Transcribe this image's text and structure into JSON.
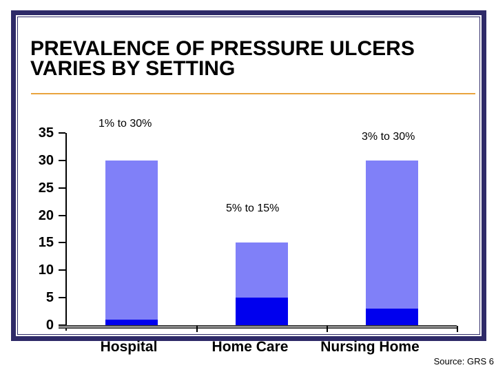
{
  "slide": {
    "title_line1": "PREVALENCE OF PRESSURE ULCERS",
    "title_line2": "VARIES BY SETTING",
    "source": "Source: GRS 6"
  },
  "colors": {
    "frame": "#2E2A68",
    "rule": "#E9A43D",
    "bar_low": "#0000EE",
    "bar_high": "#8080F8",
    "axis": "#000000",
    "baseline_gray": "#8a8a8a"
  },
  "chart_data": {
    "type": "bar",
    "subtype": "stacked-range",
    "title": "PREVALENCE OF PRESSURE ULCERS VARIES BY SETTING",
    "categories": [
      "Hospital",
      "Home Care",
      "Nursing Home"
    ],
    "series": [
      {
        "name": "range-low",
        "values": [
          1,
          5,
          3
        ],
        "color_key": "bar_low"
      },
      {
        "name": "range-high",
        "values": [
          30,
          15,
          30
        ],
        "color_key": "bar_high"
      }
    ],
    "annotations": [
      "1% to 30%",
      "5% to 15%",
      "3% to 30%"
    ],
    "xlabel": "",
    "ylabel": "",
    "ylim": [
      0,
      35
    ],
    "yticks": [
      0,
      5,
      10,
      15,
      20,
      25,
      30,
      35
    ],
    "grid": false,
    "legend": false,
    "source": "Source: GRS 6"
  }
}
